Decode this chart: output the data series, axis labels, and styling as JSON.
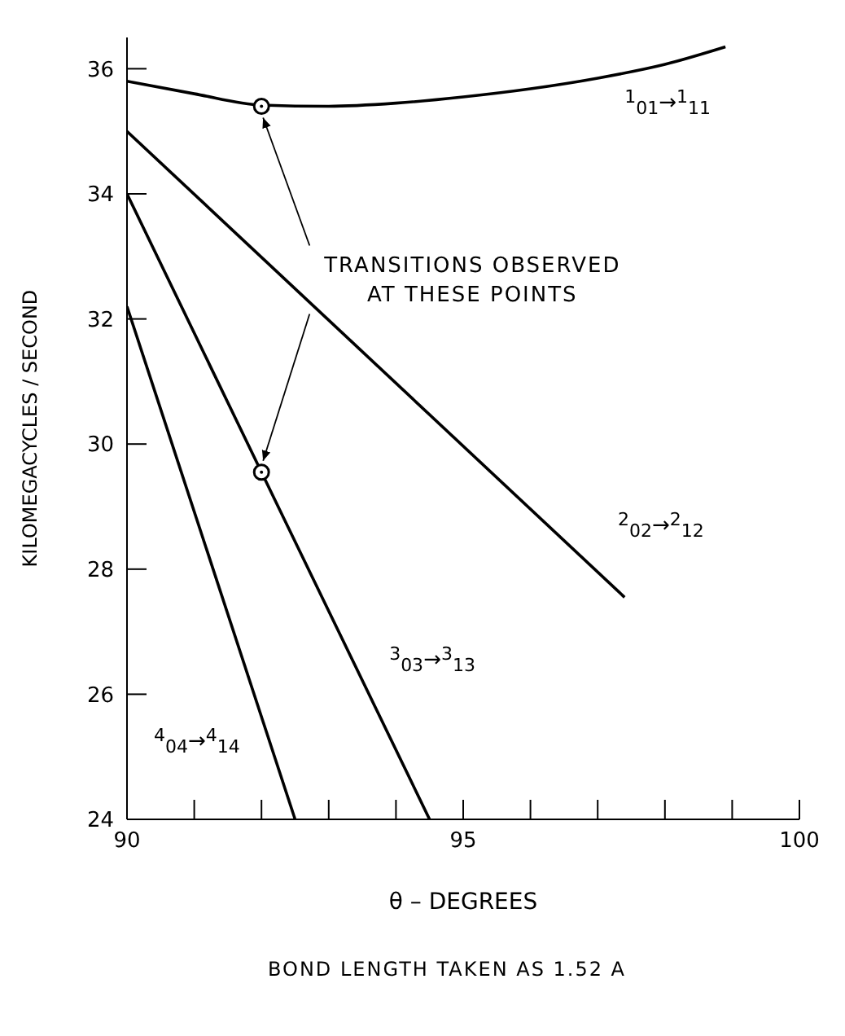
{
  "chart_data": {
    "type": "line",
    "xlabel": "θ – DEGREES",
    "ylabel": "KILOMEGACYCLES / SECOND",
    "annotations": [
      {
        "text": "TRANSITIONS OBSERVED AT THESE POINTS",
        "x": 92,
        "y": 35.4
      },
      "BOND LENGTH TAKEN AS 1.52 A"
    ],
    "xlim": [
      90,
      100
    ],
    "ylim": [
      24,
      36.5
    ],
    "xticks": [
      90,
      {
        "value": 91,
        "label": null
      },
      {
        "value": 92,
        "label": null
      },
      {
        "value": 93,
        "label": null
      },
      {
        "value": 94,
        "label": null
      },
      95,
      {
        "value": 96,
        "label": null
      },
      {
        "value": 97,
        "label": null
      },
      {
        "value": 98,
        "label": null
      },
      {
        "value": 99,
        "label": null
      },
      100
    ],
    "yticks": [
      24,
      26,
      28,
      30,
      32,
      34,
      36
    ],
    "marker": "none",
    "line_style": "solid",
    "series": [
      {
        "name": "$^{1}$$_{01}$→$^{1}$$_{11}$",
        "color": "#000000",
        "x": [
          90,
          91,
          92,
          93,
          94,
          95,
          96,
          97,
          98,
          98.9
        ],
        "values": [
          35.8,
          35.6,
          35.42,
          35.4,
          35.45,
          35.55,
          35.68,
          35.85,
          36.07,
          36.35
        ]
      },
      {
        "name": "$^{2}$$_{02}$→$^{2}$$_{12}$",
        "color": "#000000",
        "x": [
          90,
          97.4
        ],
        "values": [
          35.0,
          27.55
        ]
      },
      {
        "name": "$^{3}$$_{03}$→$^{3}$$_{13}$",
        "color": "#000000",
        "x": [
          90,
          92,
          94.5
        ],
        "values": [
          34.0,
          29.55,
          24.0
        ]
      },
      {
        "name": "$^{4}$$_{04}$→$^{4}$$_{14}$",
        "color": "#000000",
        "x": [
          90,
          92.5
        ],
        "values": [
          32.2,
          24.0
        ]
      },
      {
        "type": "scatter",
        "marker": "circle",
        "color": "#000000",
        "x": [
          92,
          92
        ],
        "values": [
          35.4,
          29.55
        ]
      }
    ]
  }
}
